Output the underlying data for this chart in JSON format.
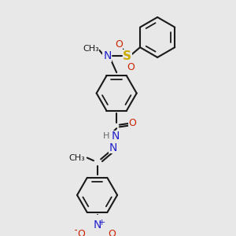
{
  "bg_color": "#e8e8e8",
  "colors": {
    "N": "#2222cc",
    "O": "#cc2200",
    "S": "#ccaa00",
    "C": "#1a1a1a",
    "H": "#666666",
    "bond": "#1a1a1a"
  },
  "layout": {
    "figsize": [
      3.0,
      3.0
    ],
    "dpi": 100,
    "xlim": [
      0,
      300
    ],
    "ylim": [
      0,
      300
    ]
  }
}
